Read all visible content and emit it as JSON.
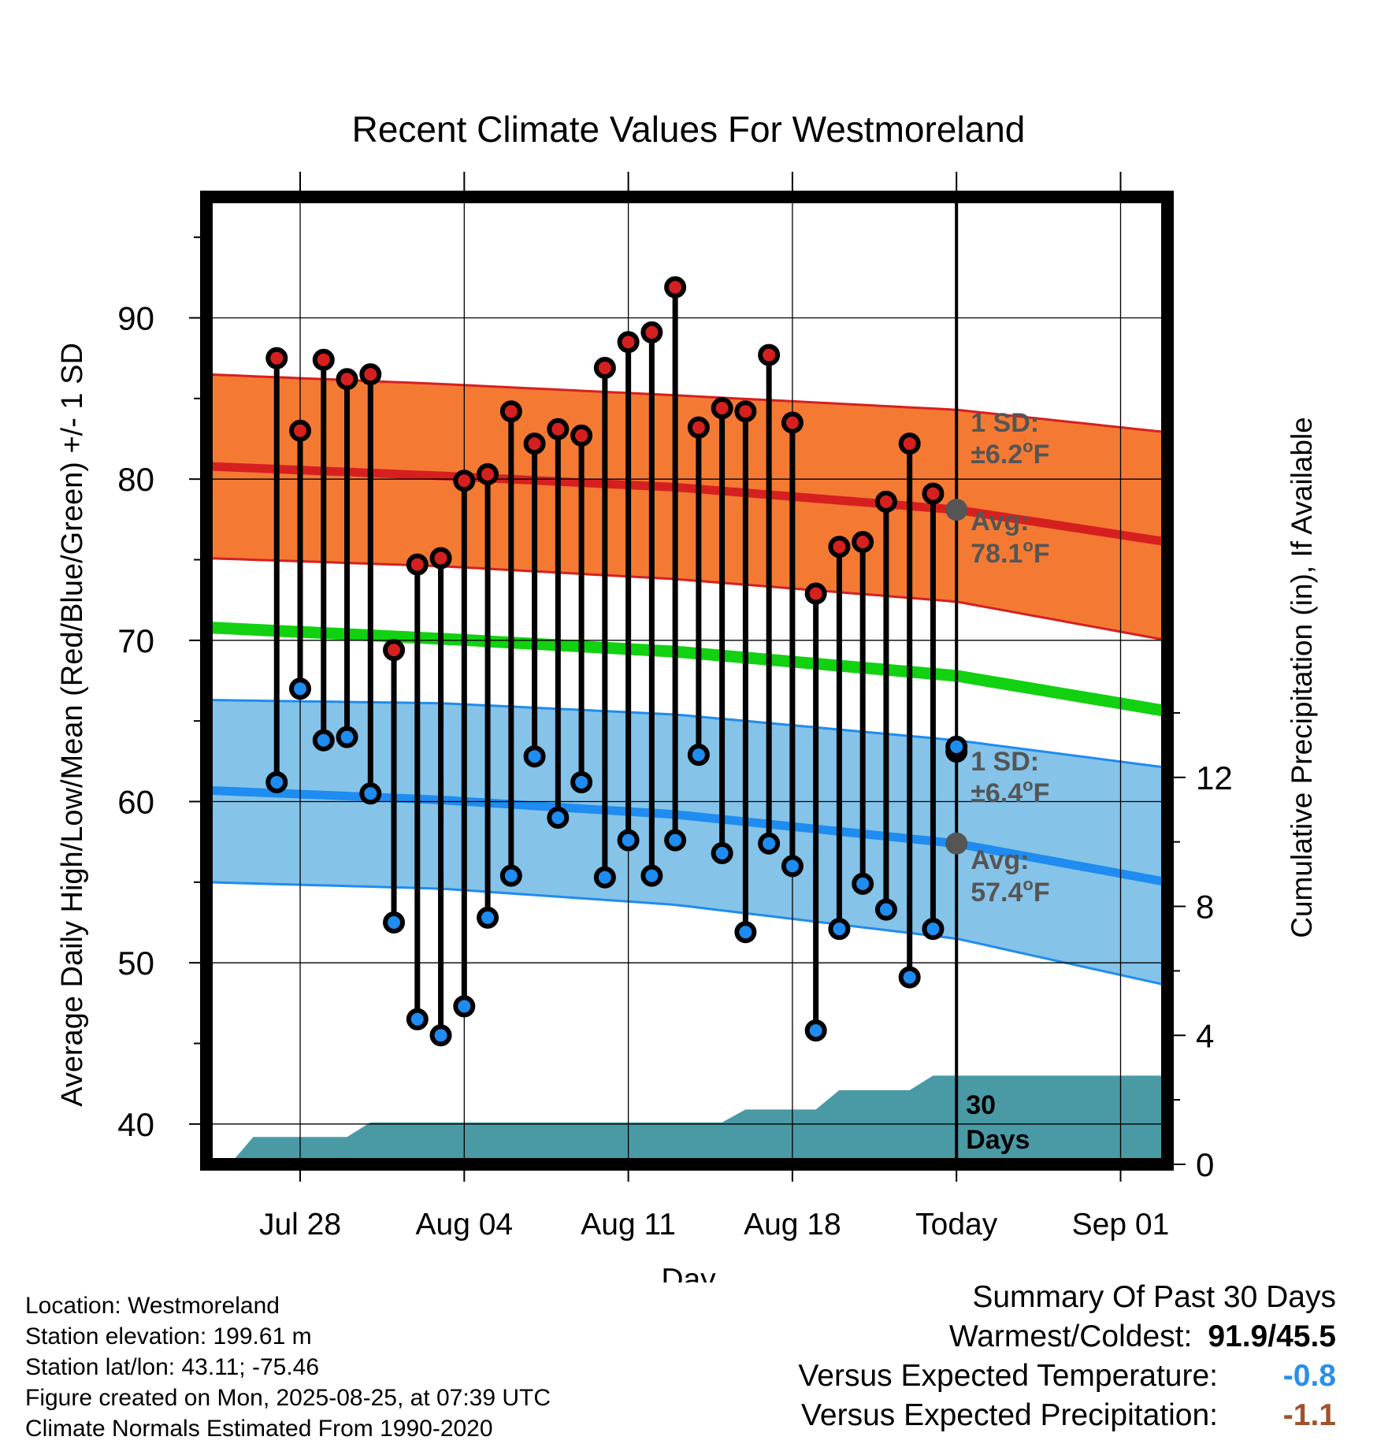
{
  "chart_data": {
    "type": "line",
    "title": "Recent Climate Values For Westmoreland",
    "xlabel": "Day",
    "ylabel_left": "Average Daily High/Low/Mean (Red/Blue/Green) +/- 1 SD",
    "ylabel_right": "Cumulative Precipitation (in), If Available",
    "ylim": [
      37.5,
      97.5
    ],
    "yticks": [
      "40",
      "50",
      "60",
      "70",
      "80",
      "90"
    ],
    "y2lim": [
      0,
      30
    ],
    "y2ticks": [
      "0",
      "4",
      "8",
      "12"
    ],
    "xticks": [
      "Jul 28",
      "Aug 04",
      "Aug 11",
      "Aug 18",
      "Today",
      "Sep 01"
    ],
    "xlim": [
      "2025-07-24",
      "2025-09-03"
    ],
    "today": "2025-08-25",
    "dates": [
      "2025-07-27",
      "2025-07-28",
      "2025-07-29",
      "2025-07-30",
      "2025-07-31",
      "2025-08-01",
      "2025-08-02",
      "2025-08-03",
      "2025-08-04",
      "2025-08-05",
      "2025-08-06",
      "2025-08-07",
      "2025-08-08",
      "2025-08-09",
      "2025-08-10",
      "2025-08-11",
      "2025-08-12",
      "2025-08-13",
      "2025-08-14",
      "2025-08-15",
      "2025-08-16",
      "2025-08-17",
      "2025-08-18",
      "2025-08-19",
      "2025-08-20",
      "2025-08-21",
      "2025-08-22",
      "2025-08-23",
      "2025-08-24",
      "2025-08-25"
    ],
    "highs": [
      87.5,
      83.0,
      87.4,
      86.2,
      86.5,
      69.4,
      74.7,
      75.1,
      79.9,
      80.3,
      84.2,
      82.2,
      83.1,
      82.7,
      86.9,
      88.5,
      89.1,
      91.9,
      83.2,
      84.4,
      84.2,
      87.7,
      83.5,
      72.9,
      75.8,
      76.1,
      78.6,
      82.2,
      79.1,
      63.1
    ],
    "lows": [
      61.2,
      67.0,
      63.8,
      64.0,
      60.5,
      52.5,
      46.5,
      45.5,
      47.3,
      52.8,
      55.4,
      62.8,
      59.0,
      61.2,
      55.3,
      57.6,
      55.4,
      57.6,
      62.9,
      56.8,
      51.9,
      57.4,
      56.0,
      45.8,
      52.1,
      54.9,
      53.3,
      49.1,
      52.1,
      63.4
    ],
    "normals": {
      "dates": [
        "2025-07-24",
        "2025-08-03",
        "2025-08-13",
        "2025-08-25",
        "2025-09-03"
      ],
      "high_mean": [
        80.8,
        80.2,
        79.5,
        78.1,
        76.1
      ],
      "high_upper": [
        86.5,
        85.9,
        85.2,
        84.3,
        82.9
      ],
      "high_lower": [
        75.1,
        74.6,
        73.8,
        72.4,
        70.0
      ],
      "avg_mean": [
        70.8,
        70.1,
        69.3,
        67.8,
        65.6
      ],
      "low_mean": [
        60.7,
        60.1,
        59.2,
        57.4,
        55.0
      ],
      "low_upper": [
        66.3,
        66.1,
        65.4,
        63.8,
        62.1
      ],
      "low_lower": [
        55.0,
        54.6,
        53.6,
        51.5,
        48.6
      ]
    },
    "precip_cumulative_steps": [
      {
        "date": "2025-07-24",
        "value": 0.0
      },
      {
        "date": "2025-07-25",
        "value": 0.0
      },
      {
        "date": "2025-07-26",
        "value": 0.85
      },
      {
        "date": "2025-07-30",
        "value": 0.85
      },
      {
        "date": "2025-07-31",
        "value": 1.3
      },
      {
        "date": "2025-08-15",
        "value": 1.3
      },
      {
        "date": "2025-08-16",
        "value": 1.7
      },
      {
        "date": "2025-08-19",
        "value": 1.7
      },
      {
        "date": "2025-08-20",
        "value": 2.3
      },
      {
        "date": "2025-08-23",
        "value": 2.3
      },
      {
        "date": "2025-08-24",
        "value": 2.75
      },
      {
        "date": "2025-09-03",
        "value": 2.75
      }
    ],
    "annotations": {
      "high_sd_label": "1 SD:",
      "high_sd_value": "±6.2",
      "high_avg_label": "Avg:",
      "high_avg_value": "78.1",
      "low_sd_label": "1 SD:",
      "low_sd_value": "±6.4",
      "low_avg_label": "Avg:",
      "low_avg_value": "57.4",
      "degree_unit": "o",
      "unit_letter": "F",
      "days_number": "30",
      "days_word": "Days"
    },
    "colors": {
      "high_band": "#f47a33",
      "high_line": "#d62020",
      "low_band": "#85c3e8",
      "low_line": "#1e8cf0",
      "mean_line": "#11d111",
      "precip": "#4a9aa5",
      "high_dot": "#d62020",
      "low_dot": "#1e8cf0",
      "annotation_text": "#555555",
      "today_dot": "#555555"
    },
    "grid": true
  },
  "meta": {
    "location": "Location: Westmoreland",
    "elevation": "Station elevation: 199.61 m",
    "latlon": "Station lat/lon: 43.11; -75.46",
    "created": "Figure created on Mon, 2025-08-25, at 07:39 UTC",
    "normals": "Climate Normals Estimated From 1990-2020"
  },
  "summary": {
    "heading": "Summary Of Past 30 Days",
    "warmest_coldest_label": "Warmest/Coldest:",
    "warmest_coldest_value": "91.9/45.5",
    "temp_label": "Versus Expected Temperature:",
    "temp_value": "-0.8",
    "temp_color": "#2b8fe8",
    "precip_label": "Versus Expected Precipitation:",
    "precip_value": "-1.1",
    "precip_color": "#a0522d"
  }
}
